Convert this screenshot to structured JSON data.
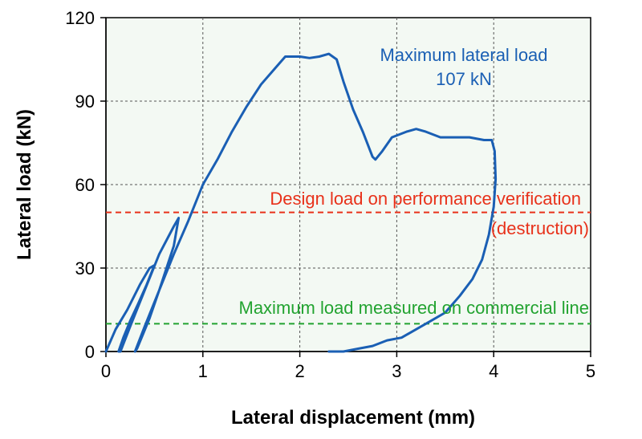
{
  "colors": {
    "plot_background": "#f3f9f3",
    "curve": "#1a5fb4",
    "design_load_line": "#e8311a",
    "commercial_line": "#22a330",
    "grid": "#555555"
  },
  "chart_data": {
    "type": "line",
    "xlabel": "Lateral displacement (mm)",
    "ylabel": "Lateral load (kN)",
    "xlim": [
      0,
      5
    ],
    "ylim": [
      0,
      120
    ],
    "xticks": [
      "0",
      "1",
      "2",
      "3",
      "4",
      "5"
    ],
    "yticks": [
      "0",
      "30",
      "60",
      "90",
      "120"
    ],
    "grid": true,
    "series": [
      {
        "style": "solid",
        "x": [
          0.0,
          0.1,
          0.22,
          0.35,
          0.45,
          0.5,
          0.42,
          0.33,
          0.25,
          0.18,
          0.13,
          0.15,
          0.25,
          0.4,
          0.55,
          0.7,
          0.75,
          0.7,
          0.55,
          0.45,
          0.38,
          0.32,
          0.3,
          0.4,
          0.55,
          0.7,
          0.85,
          1.0,
          1.15,
          1.3,
          1.45,
          1.6,
          1.75,
          1.85,
          2.0,
          2.1,
          2.2,
          2.3,
          2.38,
          2.45,
          2.55,
          2.65,
          2.75,
          2.78,
          2.85,
          2.95,
          3.1,
          3.2,
          3.3,
          3.45,
          3.6,
          3.75,
          3.9,
          3.98,
          4.01,
          4.02,
          4.0,
          3.95,
          3.88,
          3.78,
          3.65,
          3.5,
          3.35,
          3.2,
          3.05,
          2.9,
          2.75,
          2.6,
          2.45,
          2.3
        ],
        "y": [
          0,
          8,
          15,
          24,
          30,
          31,
          24,
          17,
          11,
          5,
          0,
          0,
          9,
          22,
          35,
          45,
          48,
          38,
          22,
          12,
          6,
          1,
          0,
          9,
          22,
          35,
          47,
          60,
          69,
          79,
          88,
          96,
          102,
          106,
          106,
          105.5,
          106,
          107,
          105,
          97,
          87,
          79,
          70,
          69,
          72,
          77,
          79,
          80,
          79,
          77,
          77,
          77,
          76,
          76,
          72,
          62,
          52,
          42,
          33,
          26,
          20,
          14,
          11,
          8,
          5,
          4,
          2,
          1,
          0,
          0
        ]
      }
    ],
    "reference_lines": [
      {
        "y": 50,
        "label": "Design load on performance verification",
        "label_line2": "(destruction)",
        "color": "#e8311a",
        "style": "dashed"
      },
      {
        "y": 10,
        "label": "Maximum load measured on commercial line",
        "color": "#22a330",
        "style": "dashed"
      }
    ],
    "annotations": [
      {
        "text": "Maximum lateral load",
        "color": "#1a5fb4"
      },
      {
        "text": "107 kN",
        "color": "#1a5fb4"
      }
    ]
  }
}
